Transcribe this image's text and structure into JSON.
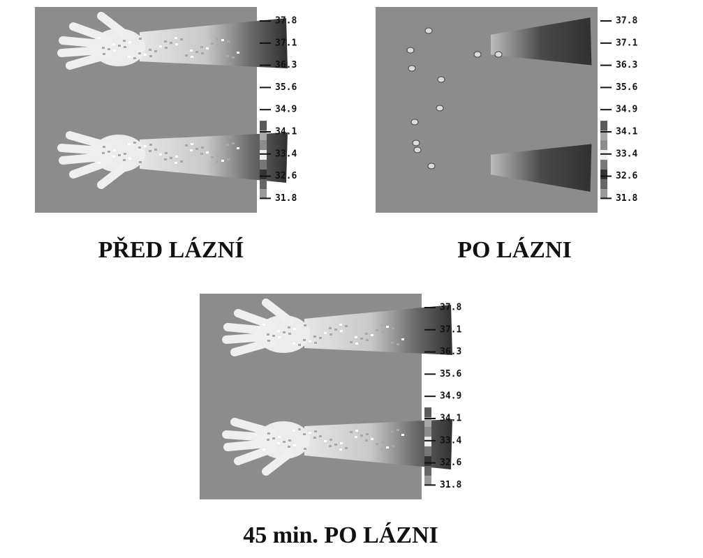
{
  "scale": [
    "37.8",
    "37.1",
    "36.3",
    "35.6",
    "34.9",
    "34.1",
    "33.4",
    "32.6",
    "31.8"
  ],
  "panels": [
    {
      "title": "PŘED LÁZNÍ"
    },
    {
      "title": "PO LÁZNI"
    },
    {
      "title": "45 min. PO LÁZNI"
    }
  ]
}
